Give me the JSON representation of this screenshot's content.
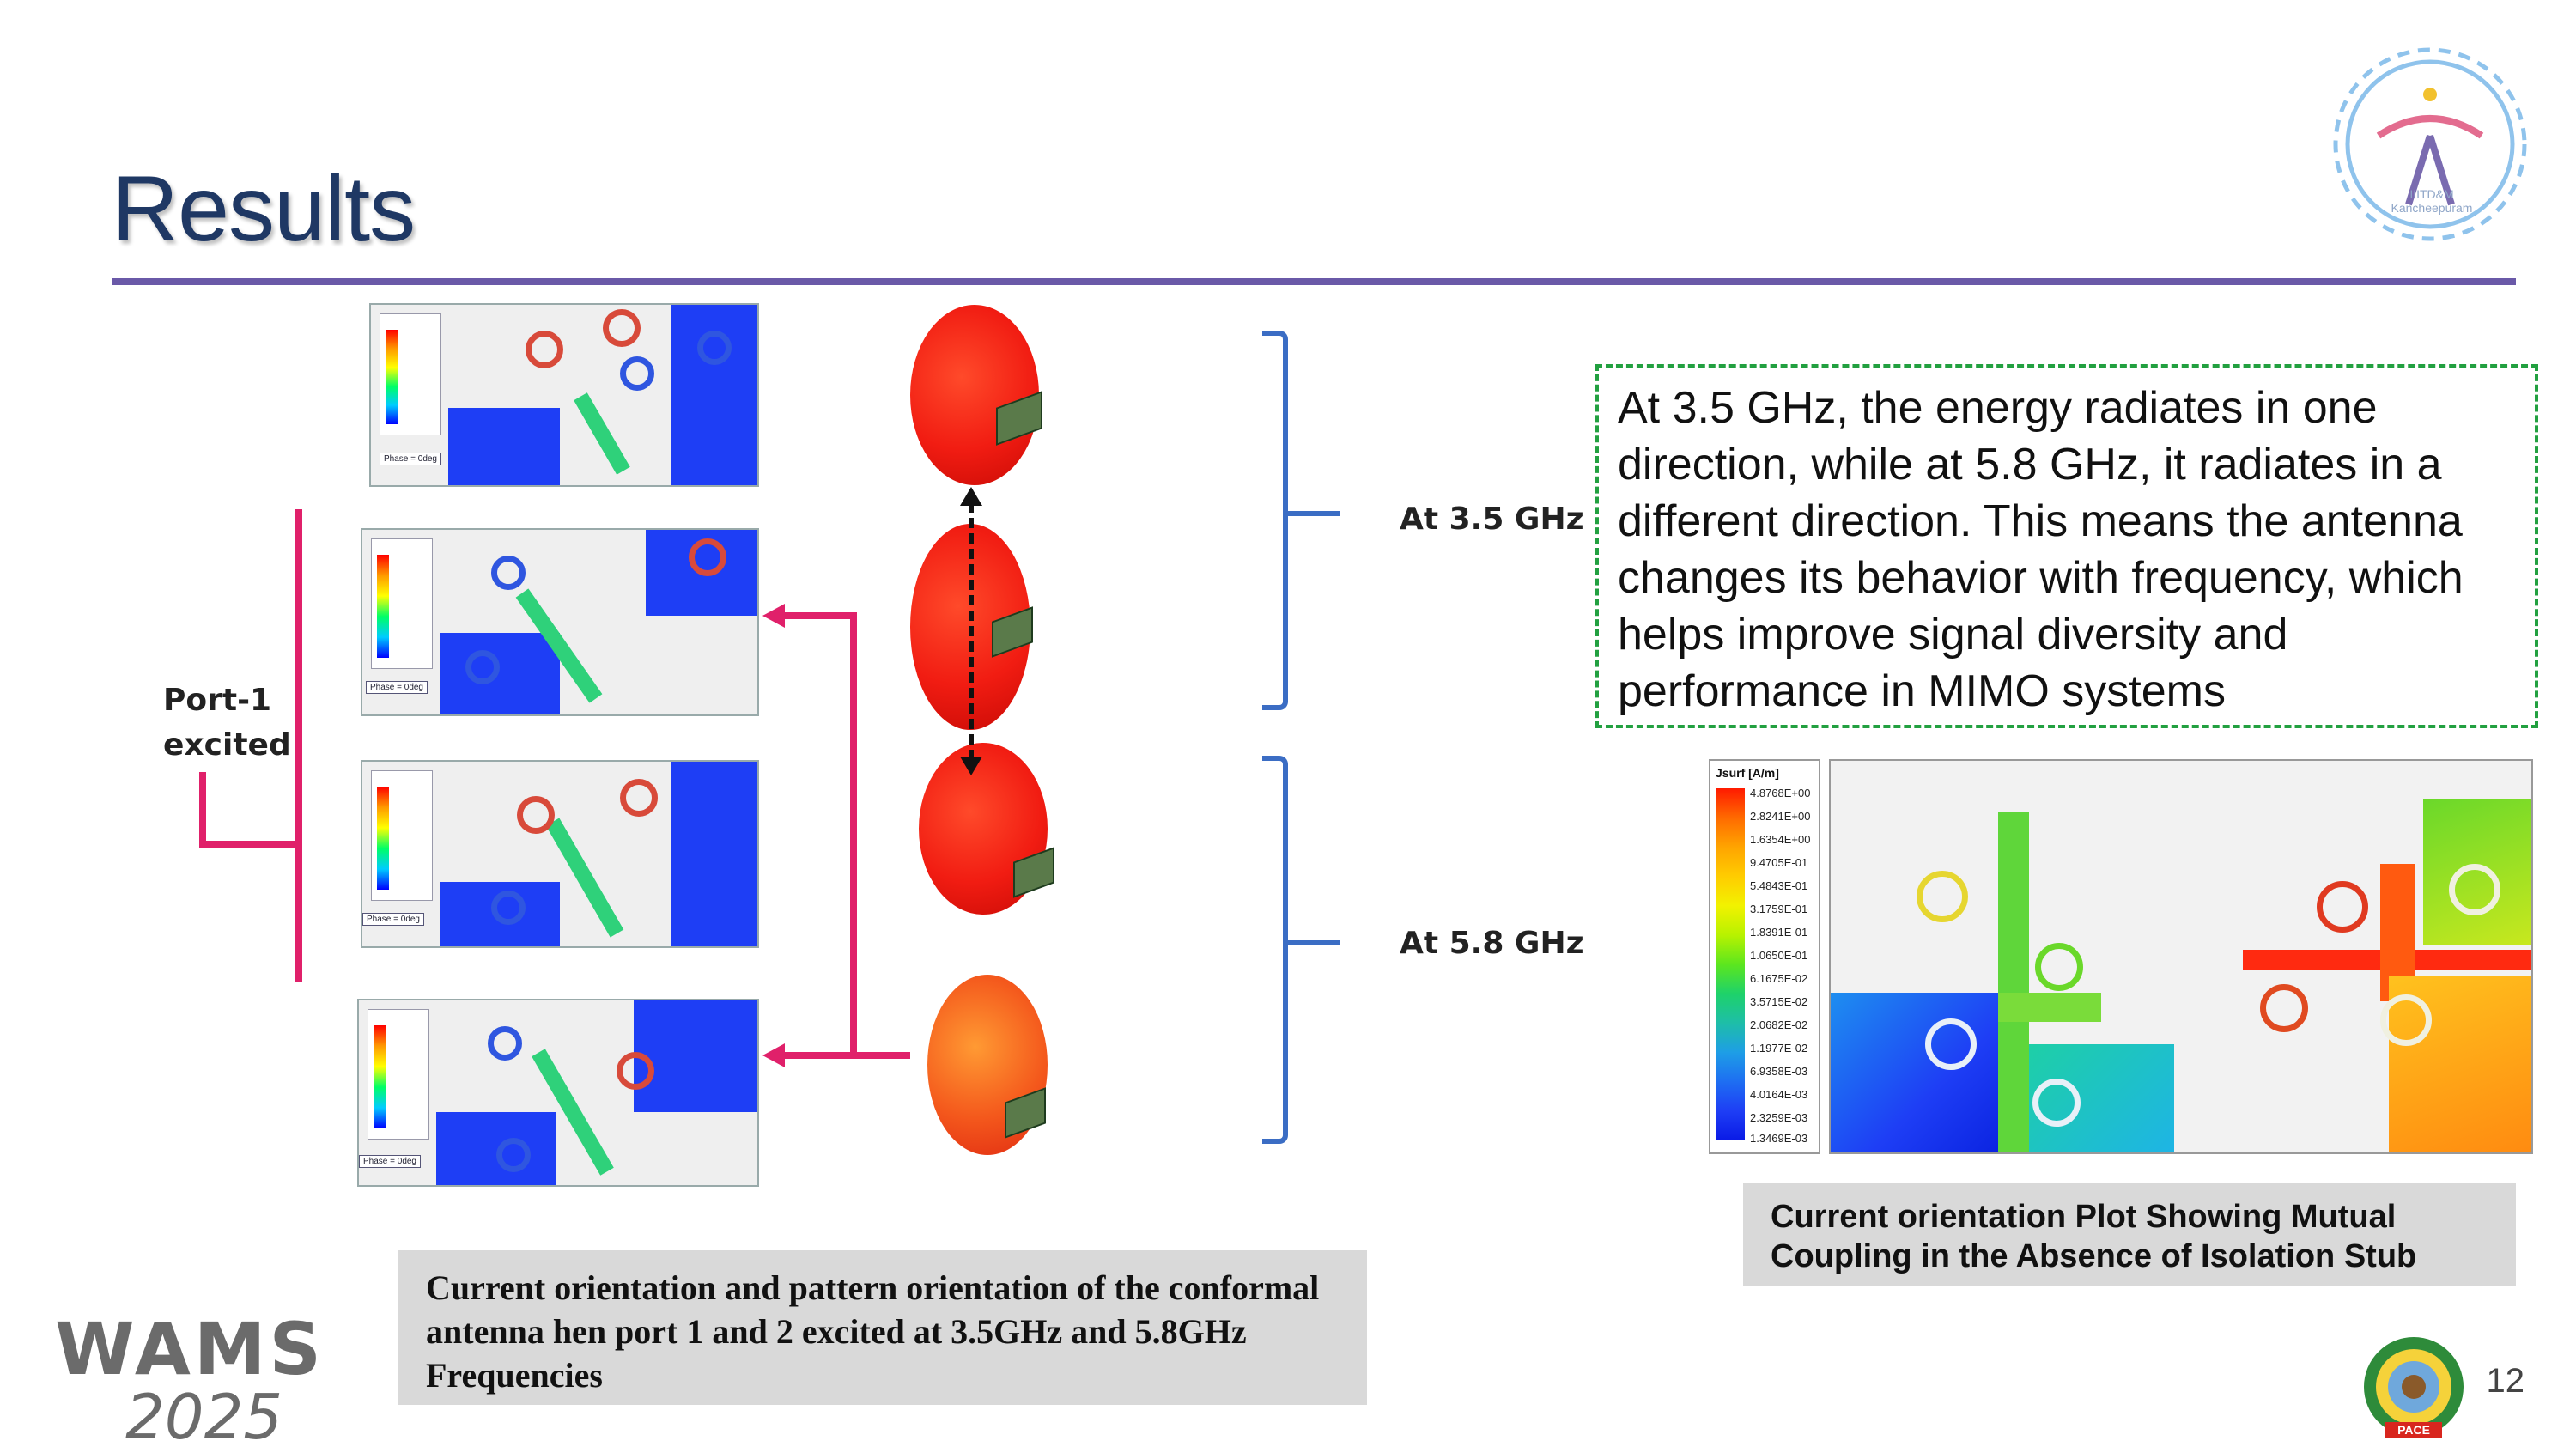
{
  "slide": {
    "title": "Results",
    "page_number": "12"
  },
  "figure_left": {
    "port_label": "Port-1\nexcited",
    "phase_label": "Phase = 0deg",
    "freq_labels": [
      "At 3.5 GHz",
      "At 5.8 GHz"
    ]
  },
  "note": {
    "text": "At 3.5 GHz, the energy radiates in one direction, while at 5.8 GHz, it radiates in a different direction. This means the antenna changes its behavior with frequency, which helps improve signal diversity and performance in MIMO systems"
  },
  "figure_right": {
    "legend_title": "Jsurf [A/m]",
    "legend_values": [
      "4.8768E+00",
      "2.8241E+00",
      "1.6354E+00",
      "9.4705E-01",
      "5.4843E-01",
      "3.1759E-01",
      "1.8391E-01",
      "1.0650E-01",
      "6.1675E-02",
      "3.5715E-02",
      "2.0682E-02",
      "1.1977E-02",
      "6.9358E-03",
      "4.0164E-03",
      "2.3259E-03",
      "1.3469E-03"
    ]
  },
  "captions": {
    "left": "Current orientation and pattern orientation of the conformal antenna hen port 1 and 2 excited at 3.5GHz and 5.8GHz Frequencies",
    "right": "Current orientation Plot Showing Mutual Coupling in the Absence of Isolation Stub"
  },
  "logos": {
    "institute_top": "IIITD&M Kancheepuram",
    "institute_bottom": "PACE",
    "conference": "WAMS",
    "conference_year": "2025"
  },
  "colors": {
    "title": "#1f3864",
    "rule": "#6a59a8",
    "bracket": "#3b6dc4",
    "arrow": "#e0206a",
    "dashed_border": "#22a040"
  }
}
